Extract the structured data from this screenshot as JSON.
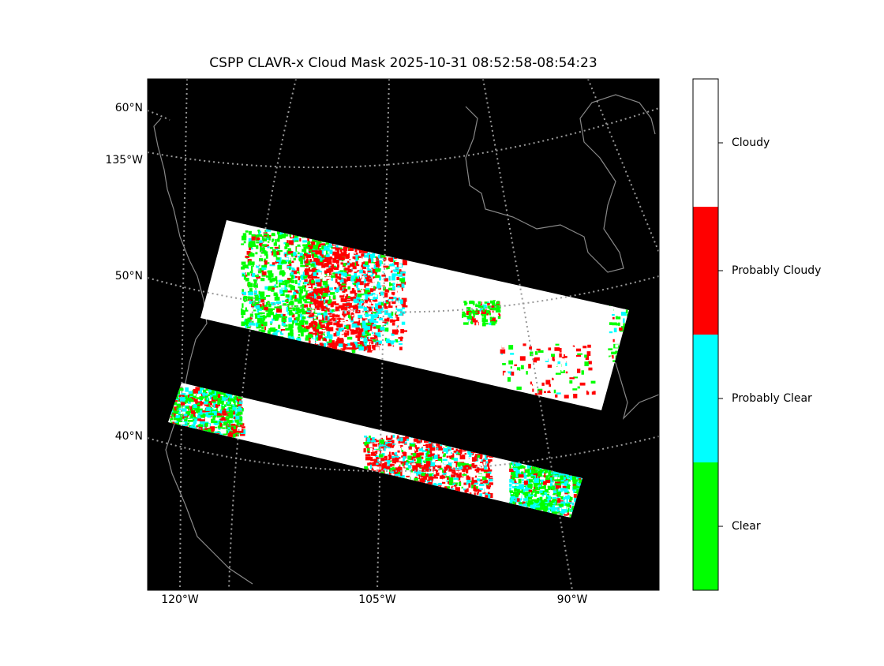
{
  "title": "CSPP CLAVR-x Cloud Mask 2025-10-31 08:52:58-08:54:23",
  "lat_labels": [
    "60°N",
    "135°W",
    "50°N",
    "40°N"
  ],
  "lon_labels": [
    "120°W",
    "105°W",
    "90°W"
  ],
  "colorbar": [
    {
      "label": "Cloudy",
      "color": "#ffffff"
    },
    {
      "label": "Probably Cloudy",
      "color": "#ff0000"
    },
    {
      "label": "Probably Clear",
      "color": "#00ffff"
    },
    {
      "label": "Clear",
      "color": "#00ff00"
    }
  ]
}
